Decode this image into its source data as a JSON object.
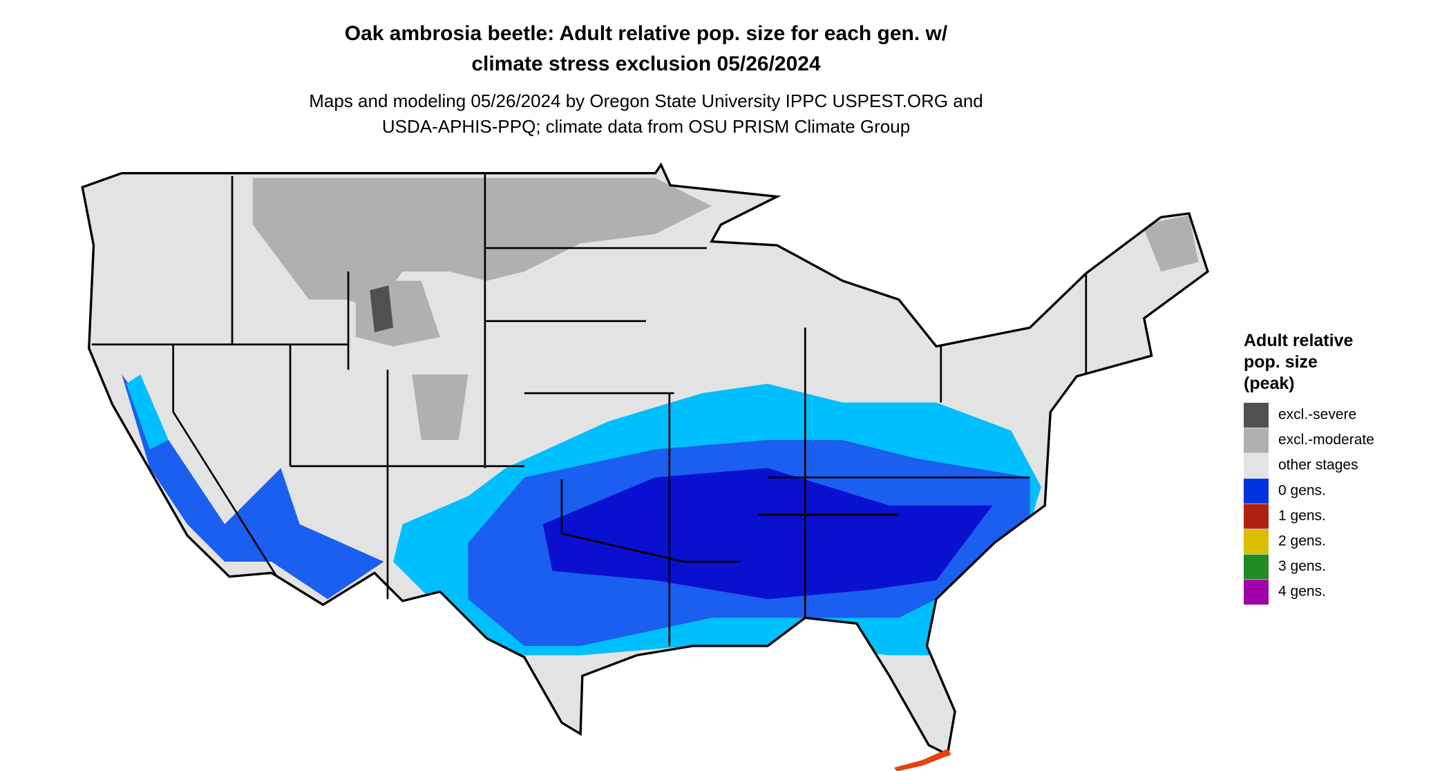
{
  "title": [
    "Oak ambrosia beetle: Adult relative pop. size for each gen. w/",
    "climate stress exclusion 05/26/2024"
  ],
  "subtitle": [
    "Maps and modeling 05/26/2024 by Oregon State University IPPC USPEST.ORG and",
    "USDA-APHIS-PPQ; climate data from OSU PRISM Climate Group"
  ],
  "legend": {
    "title": [
      "Adult relative",
      "pop. size",
      "(peak)"
    ],
    "items": [
      {
        "label": "excl.-severe",
        "color": "#505050"
      },
      {
        "label": "excl.-moderate",
        "color": "#b0b0b0"
      },
      {
        "label": "other stages",
        "color": "#e3e3e3"
      },
      {
        "label": "0 gens.",
        "color": "#0033dd"
      },
      {
        "label": "1 gens.",
        "color": "#b02010"
      },
      {
        "label": "2 gens.",
        "color": "#d8c000"
      },
      {
        "label": "3 gens.",
        "color": "#228b22"
      },
      {
        "label": "4 gens.",
        "color": "#a000a8"
      }
    ]
  }
}
